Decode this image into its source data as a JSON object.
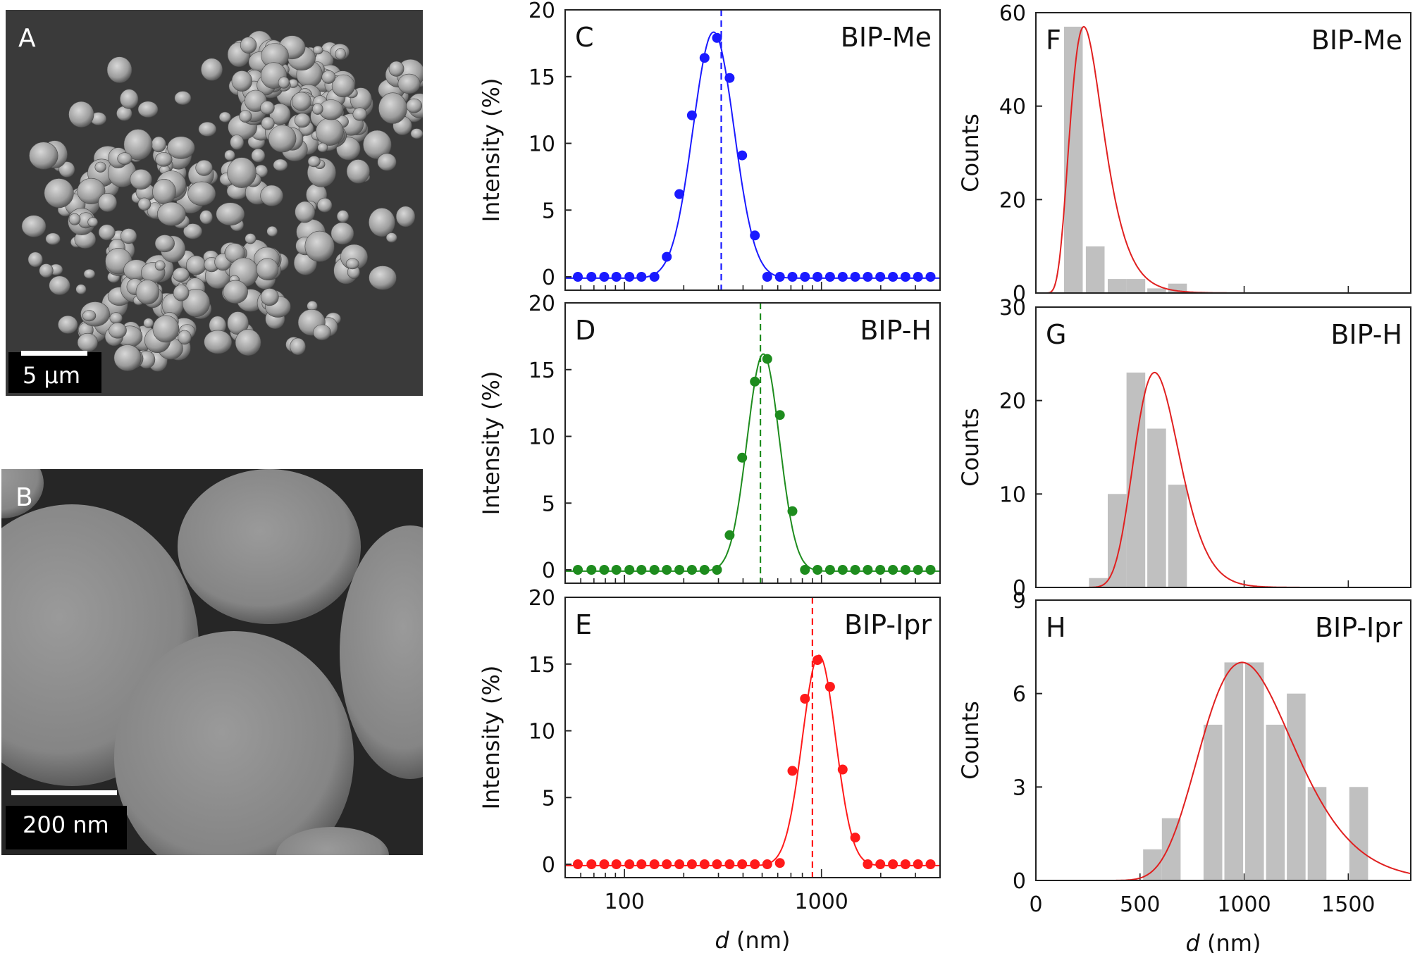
{
  "sem_panels": [
    {
      "letter": "A",
      "scale_label": "5 µm"
    },
    {
      "letter": "B",
      "scale_label": "200 nm"
    }
  ],
  "colors": {
    "BIP-Me": "#1a1aff",
    "BIP-H": "#1e8c1e",
    "BIP-Ipr": "#ff1a1a",
    "fit": "#e02020",
    "hist_bar": "#c0c0c0"
  },
  "chart_data": [
    {
      "type": "scatter",
      "panel": "C",
      "label": "BIP-Me",
      "x_scale": "log",
      "xlim": [
        50,
        4000
      ],
      "ylim": [
        -1,
        20
      ],
      "yticks": [
        0,
        5,
        10,
        15,
        20
      ],
      "ylabel": "Intensity  (%)",
      "xlabel": "",
      "mean_line": 310,
      "x": [
        58,
        68,
        79,
        91,
        106,
        122,
        142,
        164,
        190,
        220,
        255,
        295,
        342,
        396,
        459,
        531,
        615,
        712,
        825,
        955,
        1106,
        1281,
        1484,
        1718,
        1990,
        2305,
        2669,
        3091,
        3580
      ],
      "y": [
        0,
        0,
        0,
        0,
        0,
        0,
        0,
        1.5,
        6.2,
        12.1,
        16.4,
        17.9,
        14.9,
        9.1,
        3.1,
        0,
        0,
        0,
        0,
        0,
        0,
        0,
        0,
        0,
        0,
        0,
        0,
        0,
        0
      ]
    },
    {
      "type": "scatter",
      "panel": "D",
      "label": "BIP-H",
      "x_scale": "log",
      "xlim": [
        50,
        4000
      ],
      "ylim": [
        -1,
        20
      ],
      "yticks": [
        0,
        5,
        10,
        15,
        20
      ],
      "ylabel": "Intensity  (%)",
      "xlabel": "",
      "mean_line": 490,
      "x": [
        58,
        68,
        79,
        91,
        106,
        122,
        142,
        164,
        190,
        220,
        255,
        295,
        342,
        396,
        459,
        531,
        615,
        712,
        825,
        955,
        1106,
        1281,
        1484,
        1718,
        1990,
        2305,
        2669,
        3091,
        3580
      ],
      "y": [
        0,
        0,
        0,
        0,
        0,
        0,
        0,
        0,
        0,
        0,
        0,
        0,
        2.6,
        8.4,
        14.1,
        15.8,
        11.6,
        4.4,
        0,
        0,
        0,
        0,
        0,
        0,
        0,
        0,
        0,
        0,
        0
      ]
    },
    {
      "type": "scatter",
      "panel": "E",
      "label": "BIP-Ipr",
      "x_scale": "log",
      "xlim": [
        50,
        4000
      ],
      "ylim": [
        -1,
        20
      ],
      "yticks": [
        0,
        5,
        10,
        15,
        20
      ],
      "xticks": [
        100,
        1000
      ],
      "ylabel": "Intensity  (%)",
      "xlabel": "d (nm)",
      "mean_line": 900,
      "x": [
        58,
        68,
        79,
        91,
        106,
        122,
        142,
        164,
        190,
        220,
        255,
        295,
        342,
        396,
        459,
        531,
        615,
        712,
        825,
        955,
        1106,
        1281,
        1484,
        1718,
        1990,
        2305,
        2669,
        3091,
        3580
      ],
      "y": [
        0,
        0,
        0,
        0,
        0,
        0,
        0,
        0,
        0,
        0,
        0,
        0,
        0,
        0,
        0,
        0,
        0.1,
        7.0,
        12.4,
        15.3,
        13.3,
        7.1,
        2.0,
        0,
        0,
        0,
        0,
        0,
        0
      ]
    },
    {
      "type": "bar",
      "panel": "F",
      "label": "BIP-Me",
      "xlim": [
        0,
        1800
      ],
      "ylim": [
        0,
        60
      ],
      "yticks": [
        0,
        20,
        40,
        60
      ],
      "ylabel": "Counts",
      "xlabel": "",
      "bin_centers": [
        180,
        285,
        390,
        480,
        580,
        680
      ],
      "counts": [
        57,
        10,
        3,
        3,
        1,
        2
      ],
      "fit_peak": 230
    },
    {
      "type": "bar",
      "panel": "G",
      "label": "BIP-H",
      "xlim": [
        0,
        1800
      ],
      "ylim": [
        0,
        30
      ],
      "yticks": [
        0,
        10,
        20,
        30
      ],
      "ylabel": "Counts",
      "xlabel": "",
      "bin_centers": [
        390,
        480,
        580,
        680,
        780
      ],
      "counts": [
        10,
        23,
        17,
        11,
        0
      ],
      "extra_bins": [
        [
          300,
          1
        ]
      ],
      "fit_peak": 570
    },
    {
      "type": "bar",
      "panel": "H",
      "label": "BIP-Ipr",
      "xlim": [
        0,
        1800
      ],
      "ylim": [
        0,
        9
      ],
      "yticks": [
        0,
        3,
        6,
        9
      ],
      "xticks": [
        0,
        500,
        1000,
        1500
      ],
      "ylabel": "Counts",
      "xlabel": "d (nm)",
      "bin_centers": [
        560,
        650,
        850,
        950,
        1050,
        1150,
        1250,
        1350,
        1550
      ],
      "counts": [
        1,
        2,
        5,
        7,
        7,
        5,
        6,
        3,
        3
      ],
      "fit_peak": 990
    }
  ]
}
